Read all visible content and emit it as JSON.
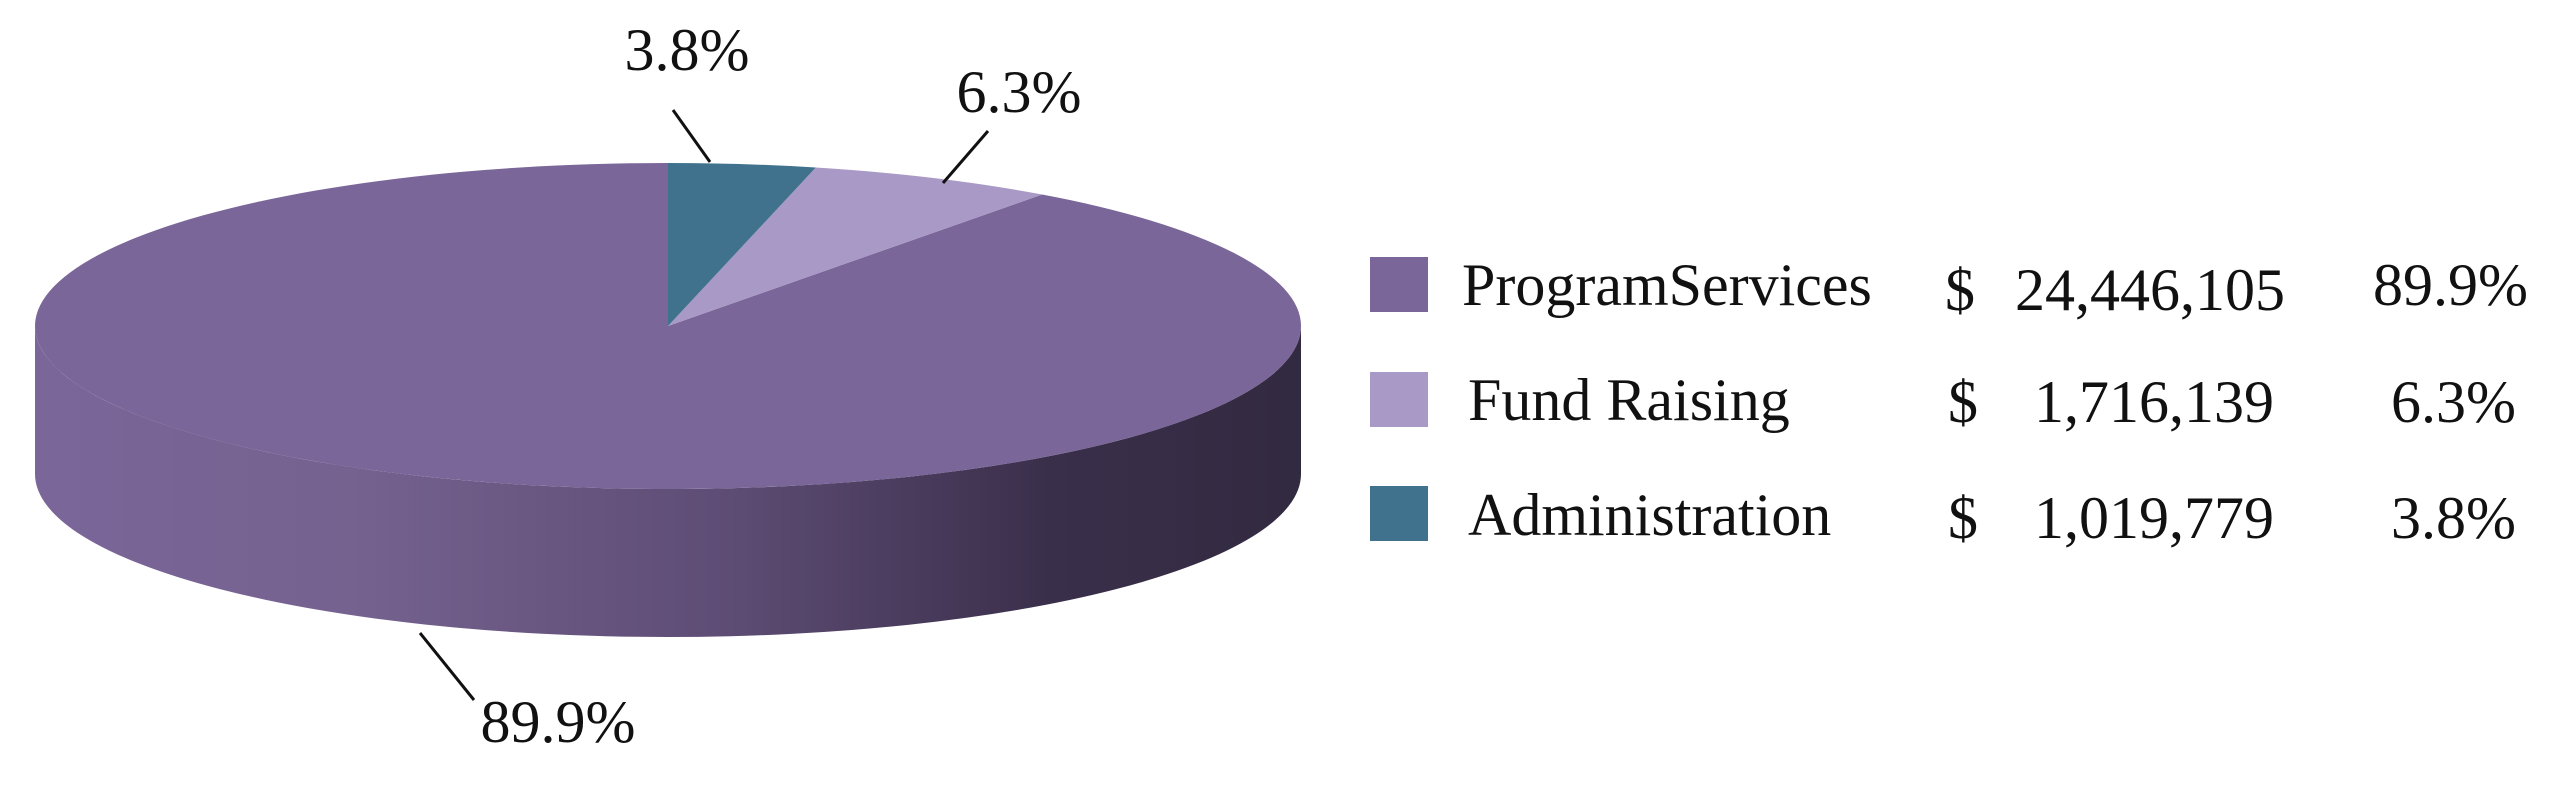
{
  "chart_data": {
    "type": "pie",
    "style": "3d",
    "title": "",
    "currency_symbol": "$",
    "legend_position": "right",
    "slices": [
      {
        "name": "ProgramServices",
        "amount": "24,446,105",
        "value": 24446105,
        "percent_label": "89.9%",
        "color": "#7a6699"
      },
      {
        "name": "Fund Raising",
        "amount": "1,716,139",
        "value": 1716139,
        "percent_label": "6.3%",
        "color": "#a999c6"
      },
      {
        "name": "Administration",
        "amount": "1,019,779",
        "value": 1019779,
        "percent_label": "3.8%",
        "color": "#41728d"
      }
    ]
  }
}
